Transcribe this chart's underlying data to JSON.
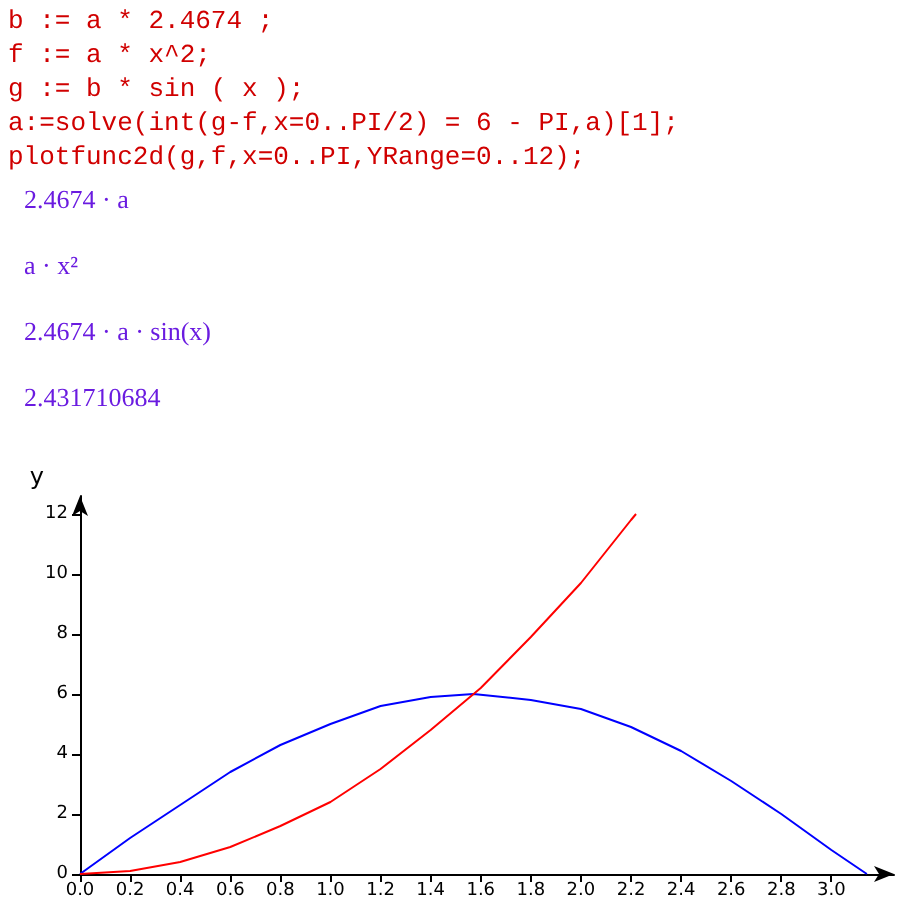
{
  "chart_data": {
    "type": "line",
    "annotations": [
      "b := a * 2.4674 ;",
      "f := a * x^2;",
      "g := b * sin ( x );",
      "a:=solve(int(g-f,x=0..PI/2) = 6 - PI,a)[1];",
      "plotfunc2d(g,f,x=0..PI,YRange=0..12);",
      "2.4674 · a",
      "a · x²",
      "2.4674 · a · sin(x)",
      "2.431710684"
    ],
    "ylabel": "y",
    "series": [
      {
        "color": "#0000ff",
        "x": [
          0,
          0.2,
          0.4,
          0.6,
          0.8,
          1.0,
          1.2,
          1.4,
          1.5708,
          1.8,
          2.0,
          2.2,
          2.4,
          2.6,
          2.8,
          3.0,
          3.1416
        ],
        "values": [
          0,
          1.2,
          2.3,
          3.4,
          4.3,
          5.0,
          5.6,
          5.9,
          6.0,
          5.8,
          5.5,
          4.9,
          4.1,
          3.1,
          2.0,
          0.8,
          0
        ]
      },
      {
        "color": "#ff0000",
        "x": [
          0,
          0.2,
          0.4,
          0.6,
          0.8,
          1.0,
          1.2,
          1.4,
          1.6,
          1.8,
          2.0,
          2.2,
          2.22
        ],
        "values": [
          0,
          0.1,
          0.4,
          0.9,
          1.6,
          2.4,
          3.5,
          4.8,
          6.2,
          7.9,
          9.7,
          11.8,
          12.0
        ]
      }
    ],
    "xlim": [
      0,
      3.25
    ],
    "xticks": [
      {
        "value": 0,
        "label": "0.0"
      },
      {
        "value": 0.2,
        "label": "0.2"
      },
      {
        "value": 0.4,
        "label": "0.4"
      },
      {
        "value": 0.6,
        "label": "0.6"
      },
      {
        "value": 0.8,
        "label": "0.8"
      },
      {
        "value": 1,
        "label": "1.0"
      },
      {
        "value": 1.2,
        "label": "1.2"
      },
      {
        "value": 1.4,
        "label": "1.4"
      },
      {
        "value": 1.6,
        "label": "1.6"
      },
      {
        "value": 1.8,
        "label": "1.8"
      },
      {
        "value": 2,
        "label": "2.0"
      },
      {
        "value": 2.2,
        "label": "2.2"
      },
      {
        "value": 2.4,
        "label": "2.4"
      },
      {
        "value": 2.6,
        "label": "2.6"
      },
      {
        "value": 2.8,
        "label": "2.8"
      },
      {
        "value": 3,
        "label": "3.0"
      }
    ],
    "ylim": [
      0,
      12.6
    ],
    "yticks": [
      0,
      2,
      4,
      6,
      8,
      10,
      12
    ],
    "grid": false,
    "marker": "none",
    "line_style": "solid"
  }
}
